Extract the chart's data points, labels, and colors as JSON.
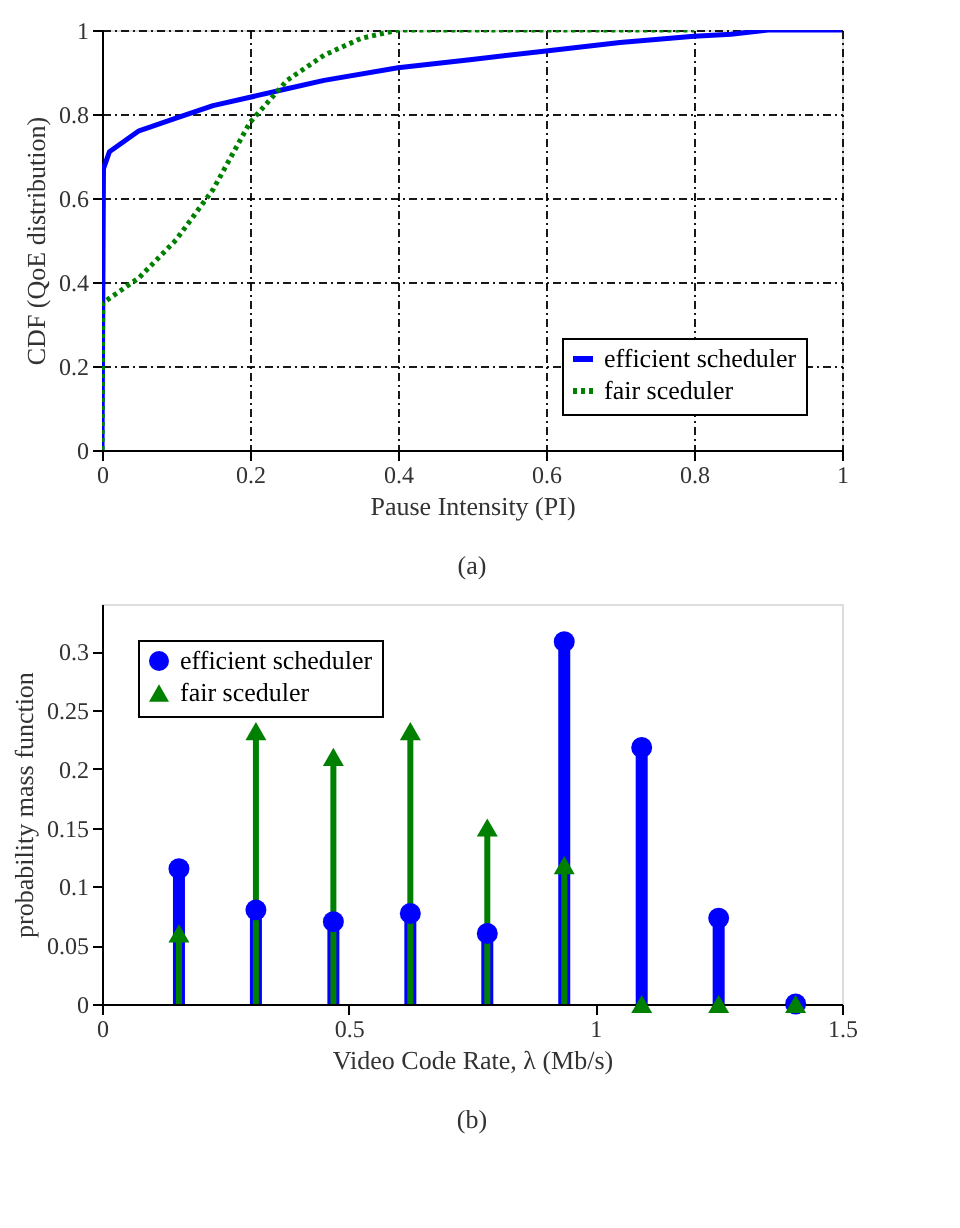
{
  "chart_data": [
    {
      "type": "line",
      "xlabel": "Pause Intensity (PI)",
      "ylabel": "CDF (QoE distribution)",
      "xlim": [
        0,
        1
      ],
      "ylim": [
        0,
        1
      ],
      "xticks": [
        0,
        0.2,
        0.4,
        0.6,
        0.8,
        1
      ],
      "yticks": [
        0,
        0.2,
        0.4,
        0.6,
        0.8,
        1
      ],
      "grid": true,
      "legend": "bottom right",
      "annotations": [
        "(a)"
      ],
      "series": [
        {
          "name": "efficient scheduler",
          "color": "#0000ff",
          "line_style": "solid",
          "x": [
            0,
            0.002,
            0.01,
            0.05,
            0.1,
            0.15,
            0.2,
            0.25,
            0.3,
            0.4,
            0.5,
            0.6,
            0.7,
            0.8,
            0.85,
            0.9,
            1
          ],
          "values": [
            0,
            0.67,
            0.71,
            0.76,
            0.79,
            0.82,
            0.84,
            0.86,
            0.88,
            0.91,
            0.93,
            0.95,
            0.97,
            0.985,
            0.99,
            1,
            1
          ]
        },
        {
          "name": "fair sceduler",
          "color": "#008000",
          "line_style": "dotted",
          "x": [
            0,
            0.001,
            0.05,
            0.1,
            0.15,
            0.2,
            0.25,
            0.3,
            0.35,
            0.4,
            0.8
          ],
          "values": [
            0,
            0.35,
            0.41,
            0.5,
            0.62,
            0.78,
            0.88,
            0.94,
            0.98,
            1,
            1
          ]
        }
      ]
    },
    {
      "type": "lollipop",
      "xlabel": "Video Code Rate, λ (Mb/s)",
      "ylabel": "probability mass function",
      "xlim": [
        0,
        1.5
      ],
      "ylim": [
        0,
        0.34
      ],
      "xticks": [
        0,
        0.5,
        1,
        1.5
      ],
      "yticks": [
        0,
        0.05,
        0.1,
        0.15,
        0.2,
        0.25,
        0.3
      ],
      "grid": false,
      "legend": "top left",
      "annotations": [
        "(b)"
      ],
      "x": [
        0.156,
        0.312,
        0.469,
        0.625,
        0.781,
        0.937,
        1.094,
        1.25,
        1.406
      ],
      "series": [
        {
          "name": "efficient scheduler",
          "color": "#0000ff",
          "marker": "circle",
          "values": [
            0.115,
            0.08,
            0.07,
            0.077,
            0.06,
            0.308,
            0.218,
            0.073,
            0
          ]
        },
        {
          "name": "fair sceduler",
          "color": "#008000",
          "marker": "triangle",
          "values": [
            0.06,
            0.232,
            0.21,
            0.232,
            0.15,
            0.118,
            0,
            0,
            0
          ]
        }
      ]
    }
  ]
}
